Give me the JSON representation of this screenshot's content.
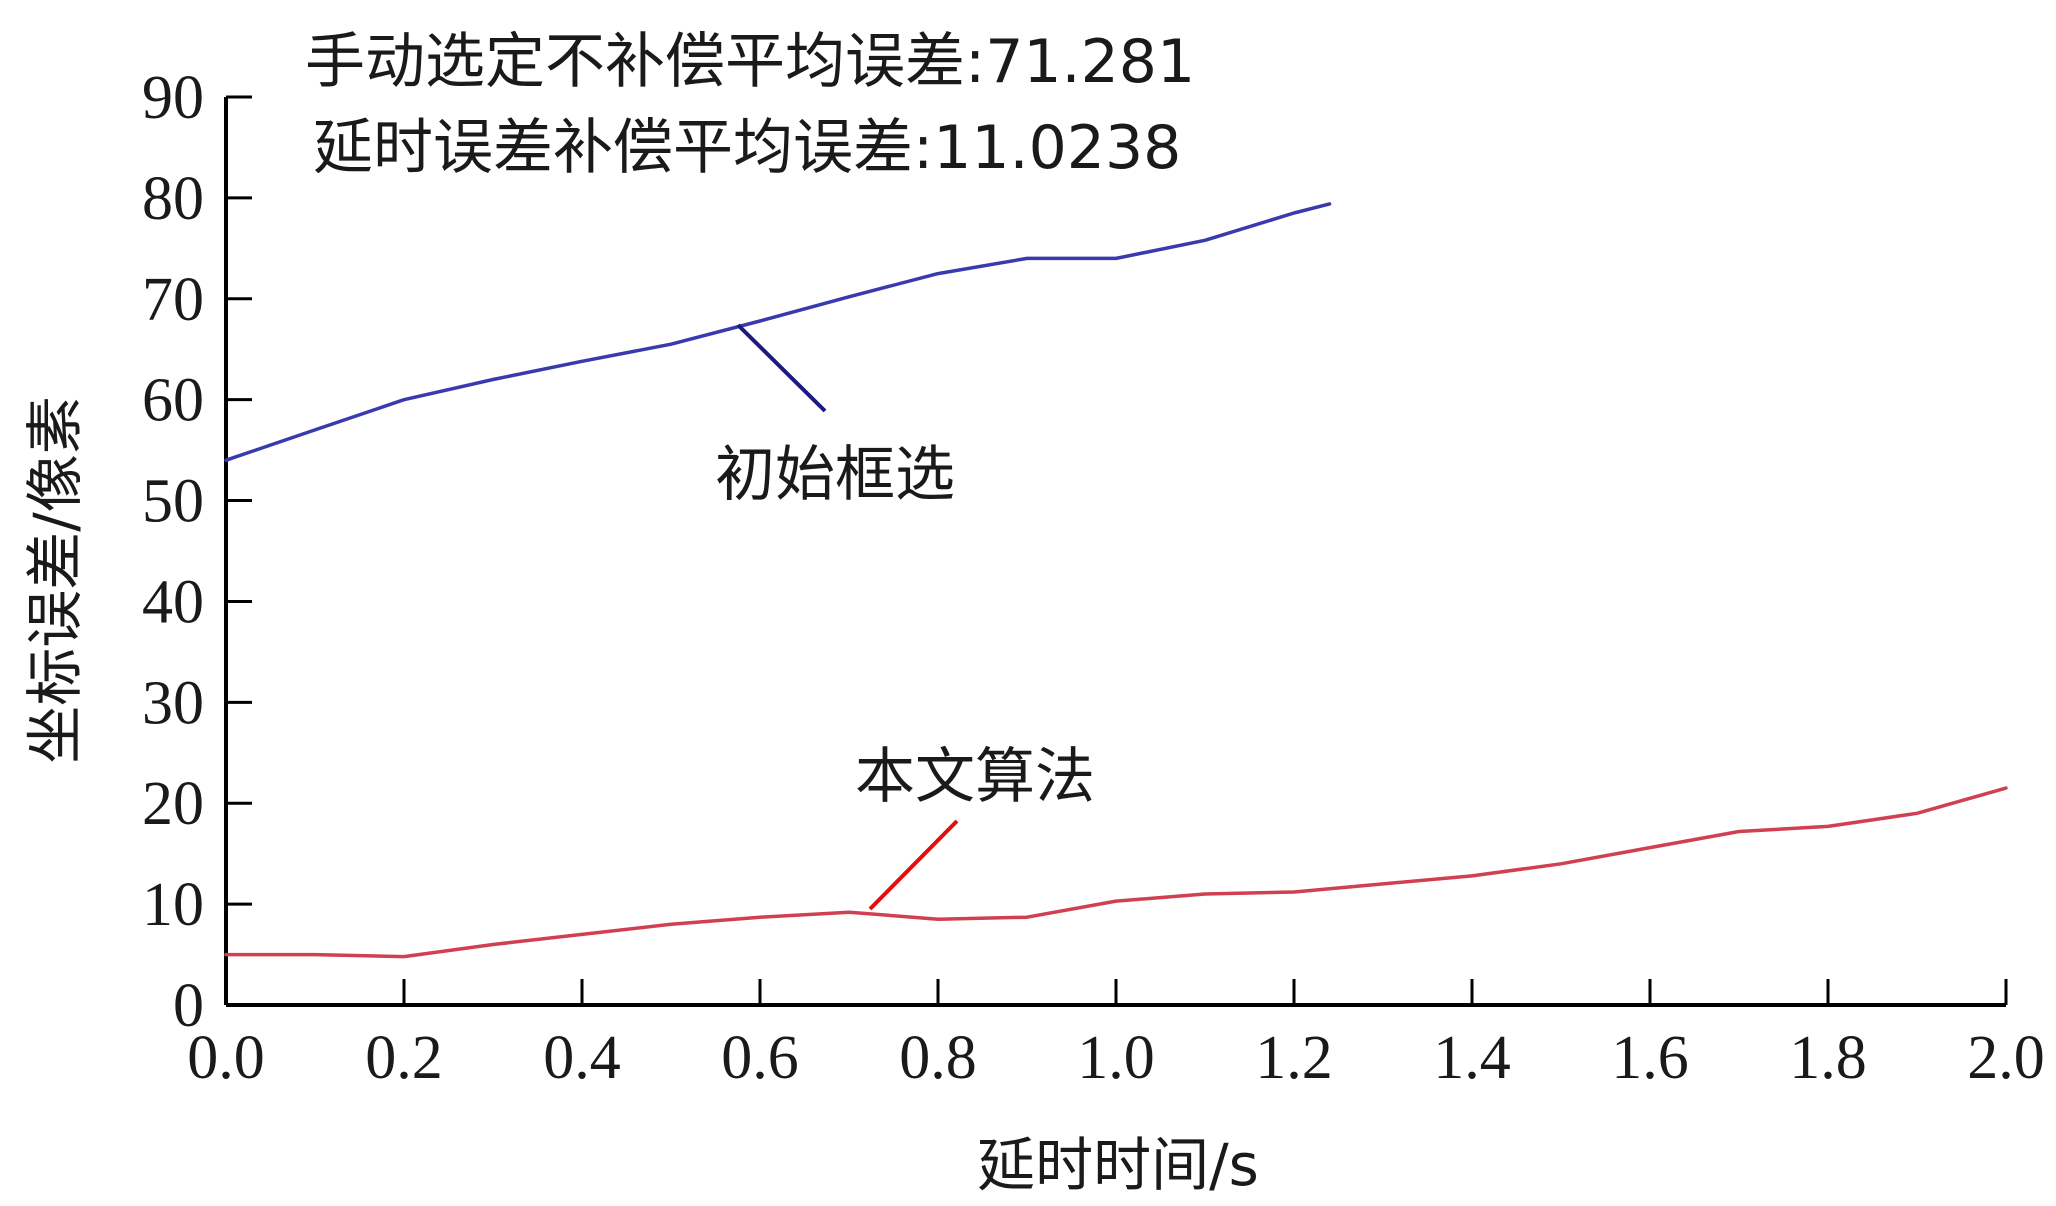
{
  "chart_data": {
    "type": "line",
    "annotations": {
      "line1": "手动选定不补偿平均误差:71.281",
      "line2": "延时误差补偿平均误差:11.0238"
    },
    "xlabel": "延时时间/s",
    "ylabel": "坐标误差/像素",
    "xlim": [
      0.0,
      2.0
    ],
    "ylim": [
      0,
      90
    ],
    "x_ticks": [
      "0.0",
      "0.2",
      "0.4",
      "0.6",
      "0.8",
      "1.0",
      "1.2",
      "1.4",
      "1.6",
      "1.8",
      "2.0"
    ],
    "y_ticks": [
      "0",
      "10",
      "20",
      "30",
      "40",
      "50",
      "60",
      "70",
      "80",
      "90"
    ],
    "grid": false,
    "series": [
      {
        "name": "初始框选",
        "color": "#3a3ab0",
        "x": [
          0.0,
          0.1,
          0.2,
          0.3,
          0.4,
          0.5,
          0.6,
          0.7,
          0.8,
          0.9,
          1.0,
          1.1,
          1.2,
          1.24
        ],
        "y": [
          54.0,
          57.0,
          60.0,
          62.0,
          63.8,
          65.5,
          67.8,
          70.2,
          72.5,
          74.0,
          74.0,
          75.8,
          78.5,
          79.4
        ]
      },
      {
        "name": "本文算法",
        "color": "#d04050",
        "x": [
          0.0,
          0.1,
          0.2,
          0.3,
          0.4,
          0.5,
          0.6,
          0.7,
          0.8,
          0.9,
          1.0,
          1.1,
          1.2,
          1.3,
          1.4,
          1.5,
          1.6,
          1.7,
          1.8,
          1.9,
          2.0
        ],
        "y": [
          5.0,
          5.0,
          4.8,
          6.0,
          7.0,
          8.0,
          8.7,
          9.2,
          8.5,
          8.7,
          10.3,
          11.0,
          11.2,
          12.0,
          12.8,
          14.0,
          15.6,
          17.2,
          17.7,
          19.0,
          21.5
        ]
      }
    ]
  }
}
